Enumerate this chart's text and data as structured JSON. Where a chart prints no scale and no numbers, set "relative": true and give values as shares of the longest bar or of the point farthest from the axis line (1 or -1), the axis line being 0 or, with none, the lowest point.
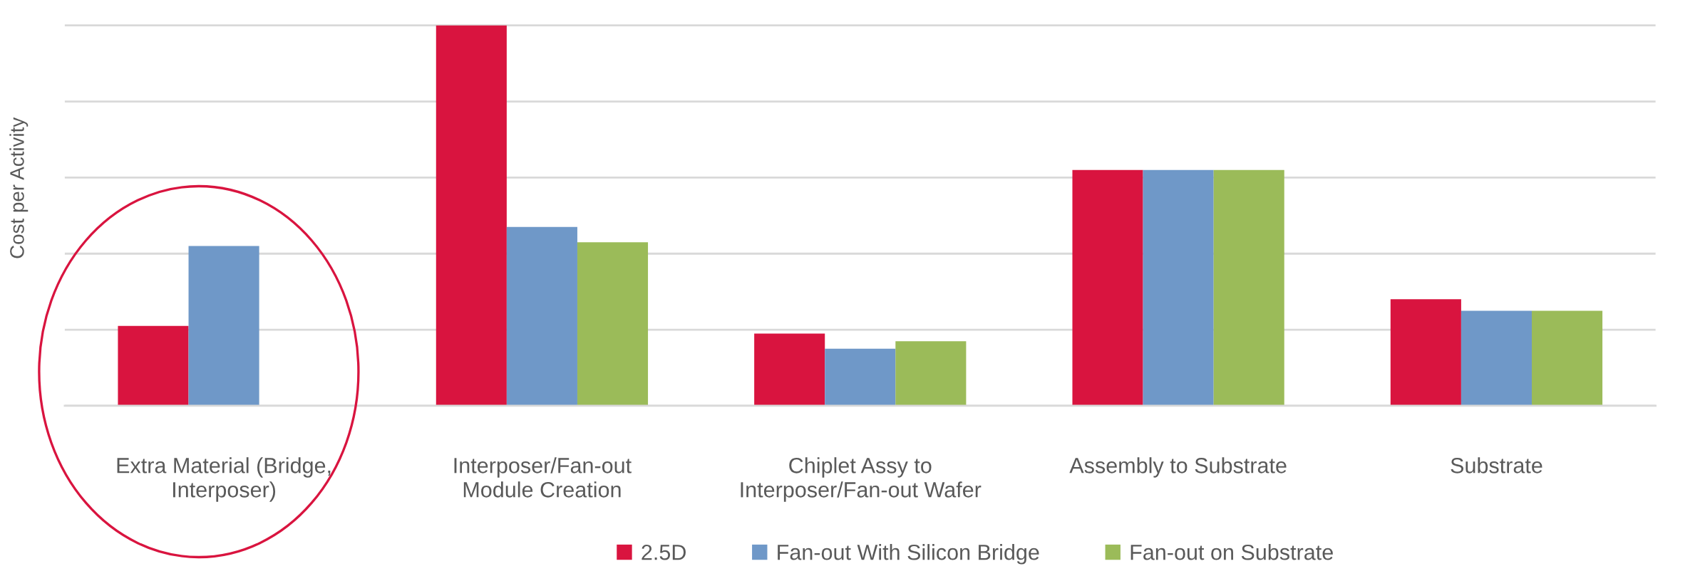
{
  "chart_data": {
    "type": "bar",
    "ylabel": "Cost per Activity",
    "categories": [
      "Extra Material (Bridge,\nInterposer)",
      "Interposer/Fan-out\nModule Creation",
      "Chiplet Assy to\nInterposer/Fan-out Wafer",
      "Assembly to Substrate",
      "Substrate"
    ],
    "series": [
      {
        "name": "2.5D",
        "color": "#d9143f",
        "values": [
          0.21,
          1,
          0.19,
          0.62,
          0.28
        ]
      },
      {
        "name": "Fan-out With Silicon Bridge",
        "color": "#6f98c8",
        "values": [
          0.42,
          0.47,
          0.15,
          0.62,
          0.25
        ]
      },
      {
        "name": "Fan-out on Substrate",
        "color": "#9bbb59",
        "values": [
          0,
          0.43,
          0.17,
          0.62,
          0.25
        ]
      }
    ],
    "relative": true,
    "grid": "y",
    "legend": "bottom"
  }
}
